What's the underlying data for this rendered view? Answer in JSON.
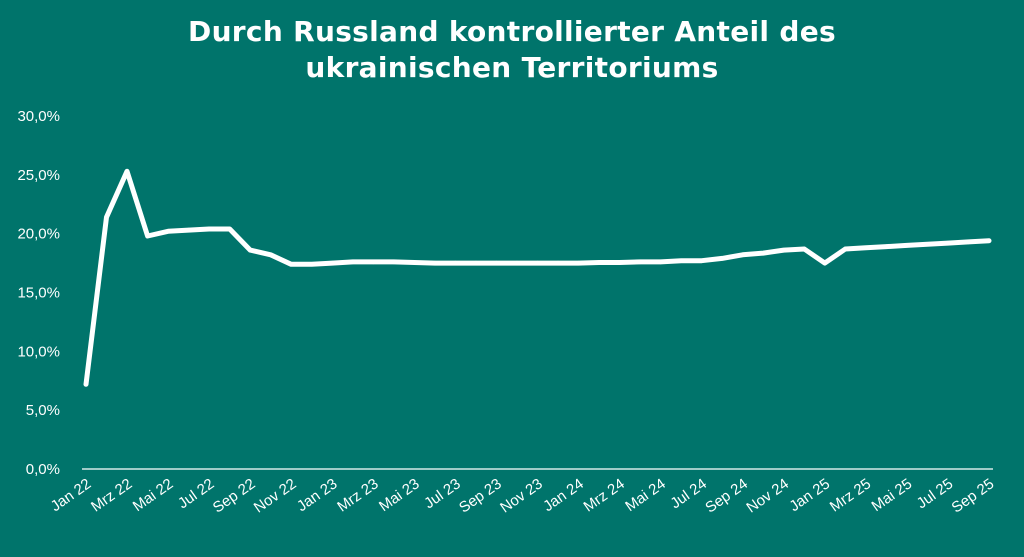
{
  "chart_data": {
    "type": "line",
    "title_lines": [
      "Durch Russland kontrollierter Anteil des",
      "ukrainischen Territoriums"
    ],
    "xlabel": "",
    "ylabel": "",
    "ylim": [
      0,
      30
    ],
    "yticks": [
      "0,0%",
      "5,0%",
      "10,0%",
      "15,0%",
      "20,0%",
      "25,0%",
      "30,0%"
    ],
    "xtick_labels": [
      "Jan 22",
      "Mrz 22",
      "Mai 22",
      "Jul 22",
      "Sep 22",
      "Nov 22",
      "Jan 23",
      "Mrz 23",
      "Mai 23",
      "Jul 23",
      "Sep 23",
      "Nov 23",
      "Jan 24",
      "Mrz 24",
      "Mai 24",
      "Jul 24",
      "Sep 24",
      "Nov 24",
      "Jan 25",
      "Mrz 25",
      "Mai 25",
      "Jul 25",
      "Sep 25"
    ],
    "x": [
      "Jan 22",
      "Feb 22",
      "Mrz 22",
      "Apr 22",
      "Mai 22",
      "Jun 22",
      "Jul 22",
      "Aug 22",
      "Sep 22",
      "Okt 22",
      "Nov 22",
      "Dez 22",
      "Jan 23",
      "Feb 23",
      "Mrz 23",
      "Apr 23",
      "Mai 23",
      "Jun 23",
      "Jul 23",
      "Aug 23",
      "Sep 23",
      "Okt 23",
      "Nov 23",
      "Dez 23",
      "Jan 24",
      "Feb 24",
      "Mrz 24",
      "Apr 24",
      "Mai 24",
      "Jun 24",
      "Jul 24",
      "Aug 24",
      "Sep 24",
      "Okt 24",
      "Nov 24",
      "Dez 24",
      "Jan 25",
      "Feb 25",
      "Mrz 25",
      "Apr 25",
      "Mai 25",
      "Jun 25",
      "Jul 25",
      "Aug 25",
      "Sep 25"
    ],
    "series": [
      {
        "values": [
          7.2,
          21.4,
          25.3,
          19.8,
          20.2,
          20.3,
          20.4,
          20.4,
          18.6,
          18.2,
          17.4,
          17.4,
          17.5,
          17.6,
          17.6,
          17.6,
          17.55,
          17.5,
          17.5,
          17.5,
          17.5,
          17.5,
          17.5,
          17.5,
          17.5,
          17.55,
          17.55,
          17.6,
          17.6,
          17.7,
          17.7,
          17.9,
          18.2,
          18.35,
          18.6,
          18.7,
          17.5,
          18.7,
          18.8,
          18.9,
          19.0,
          19.1,
          19.2,
          19.3,
          19.4
        ]
      }
    ],
    "grid": false,
    "legend": "none",
    "colors": {
      "background": "#00746b",
      "line": "#ffffff"
    }
  }
}
